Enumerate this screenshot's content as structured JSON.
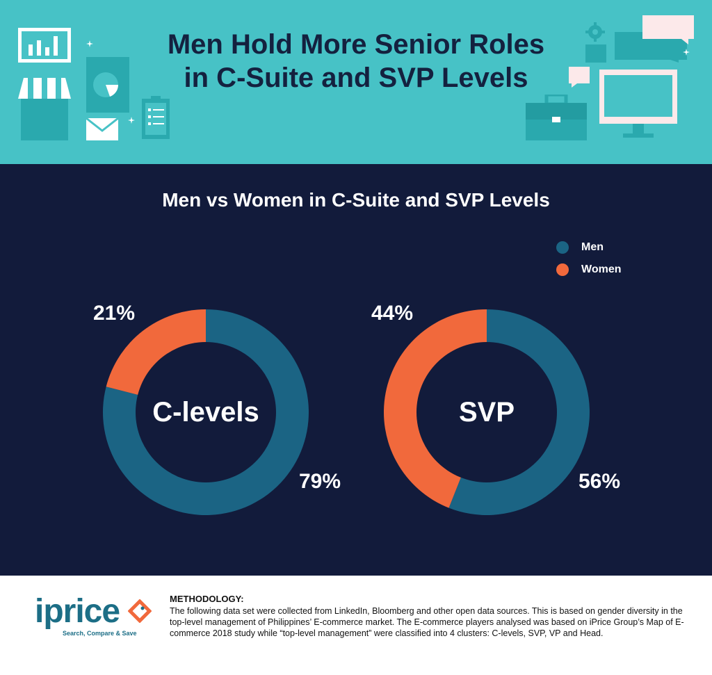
{
  "header": {
    "title_line1": "Men Hold More Senior Roles",
    "title_line2": "in C-Suite and SVP Levels"
  },
  "chart_data": {
    "type": "donut",
    "title": "Men vs Women in C-Suite and SVP Levels",
    "legend": [
      {
        "name": "Men",
        "color": "#1b6484"
      },
      {
        "name": "Women",
        "color": "#f1693c"
      }
    ],
    "legend_position": "top-right",
    "charts": [
      {
        "label": "C-levels",
        "slices": [
          {
            "name": "Men",
            "value": 79,
            "label": "79%"
          },
          {
            "name": "Women",
            "value": 21,
            "label": "21%"
          }
        ]
      },
      {
        "label": "SVP",
        "slices": [
          {
            "name": "Men",
            "value": 56,
            "label": "56%"
          },
          {
            "name": "Women",
            "value": 44,
            "label": "44%"
          }
        ]
      }
    ]
  },
  "footer": {
    "logo_text": "iprice",
    "logo_tagline": "Search, Compare & Save",
    "methodology_title": "METHODOLOGY:",
    "methodology_text": "The following data set were collected from LinkedIn, Bloomberg and other open data sources. This is based on gender diversity in the top-level management of Philippines’ E-commerce market. The E-commerce players analysed was based on iPrice Group’s Map of E-commerce 2018 study while “top-level management” were classified into 4 clusters: C-levels, SVP, VP and Head."
  },
  "colors": {
    "header_bg": "#47c2c6",
    "panel_bg": "#121b3b",
    "title_text": "#14213f",
    "men": "#1b6484",
    "women": "#f1693c"
  },
  "icons": [
    "bar-chart-icon",
    "storefront-icon",
    "pie-report-icon",
    "envelope-icon",
    "clipboard-icon",
    "gear-icon",
    "chat-bubble-icon",
    "briefcase-icon",
    "monitor-icon"
  ]
}
